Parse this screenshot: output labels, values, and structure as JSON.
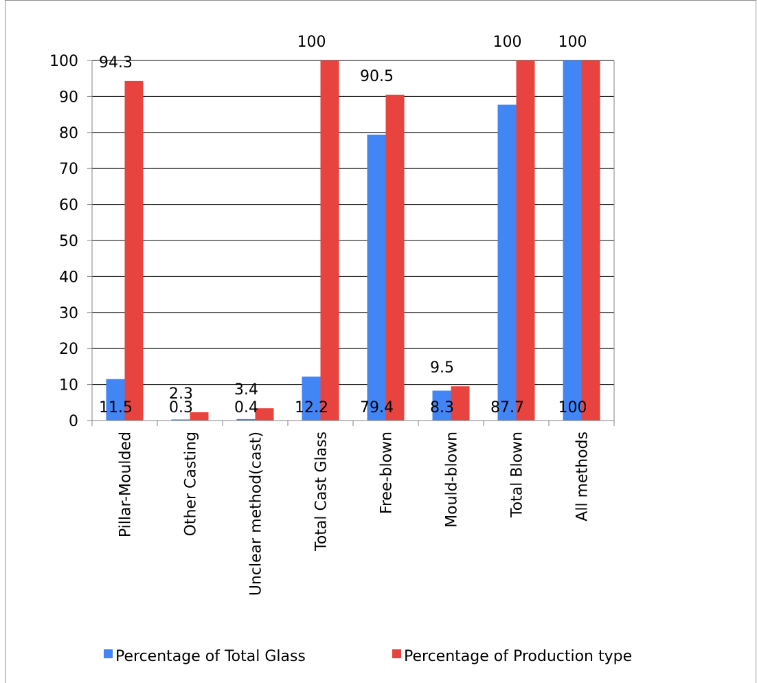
{
  "chart_data": {
    "type": "bar",
    "title": "",
    "xlabel": "",
    "ylabel": "",
    "ylim": [
      0,
      100
    ],
    "yticks": [
      0,
      10,
      20,
      30,
      40,
      50,
      60,
      70,
      80,
      90,
      100
    ],
    "grid": "horizontal",
    "legend_position": "bottom",
    "categories": [
      "Pillar-Moulded",
      "Other Casting",
      "Unclear method(cast)",
      "Total Cast Glass",
      "Free-blown",
      "Mould-blown",
      "Total Blown",
      "All methods"
    ],
    "series": [
      {
        "name": "Percentage of Total Glass",
        "color": "#4285f4",
        "values": [
          11.5,
          0.3,
          0.4,
          12.2,
          79.4,
          8.3,
          87.7,
          100
        ]
      },
      {
        "name": "Percentage of Production type",
        "color": "#e8433e",
        "values": [
          94.3,
          2.3,
          3.4,
          100,
          90.5,
          9.5,
          100,
          100
        ]
      }
    ],
    "data_labels": {
      "s0": [
        "11.5",
        "0.3",
        "0.4",
        "12.2",
        "79.4",
        "8.3",
        "87.7",
        "100"
      ],
      "s1": [
        "94.3",
        "2.3",
        "3.4",
        "100",
        "90.5",
        "9.5",
        "100",
        "100"
      ]
    }
  }
}
